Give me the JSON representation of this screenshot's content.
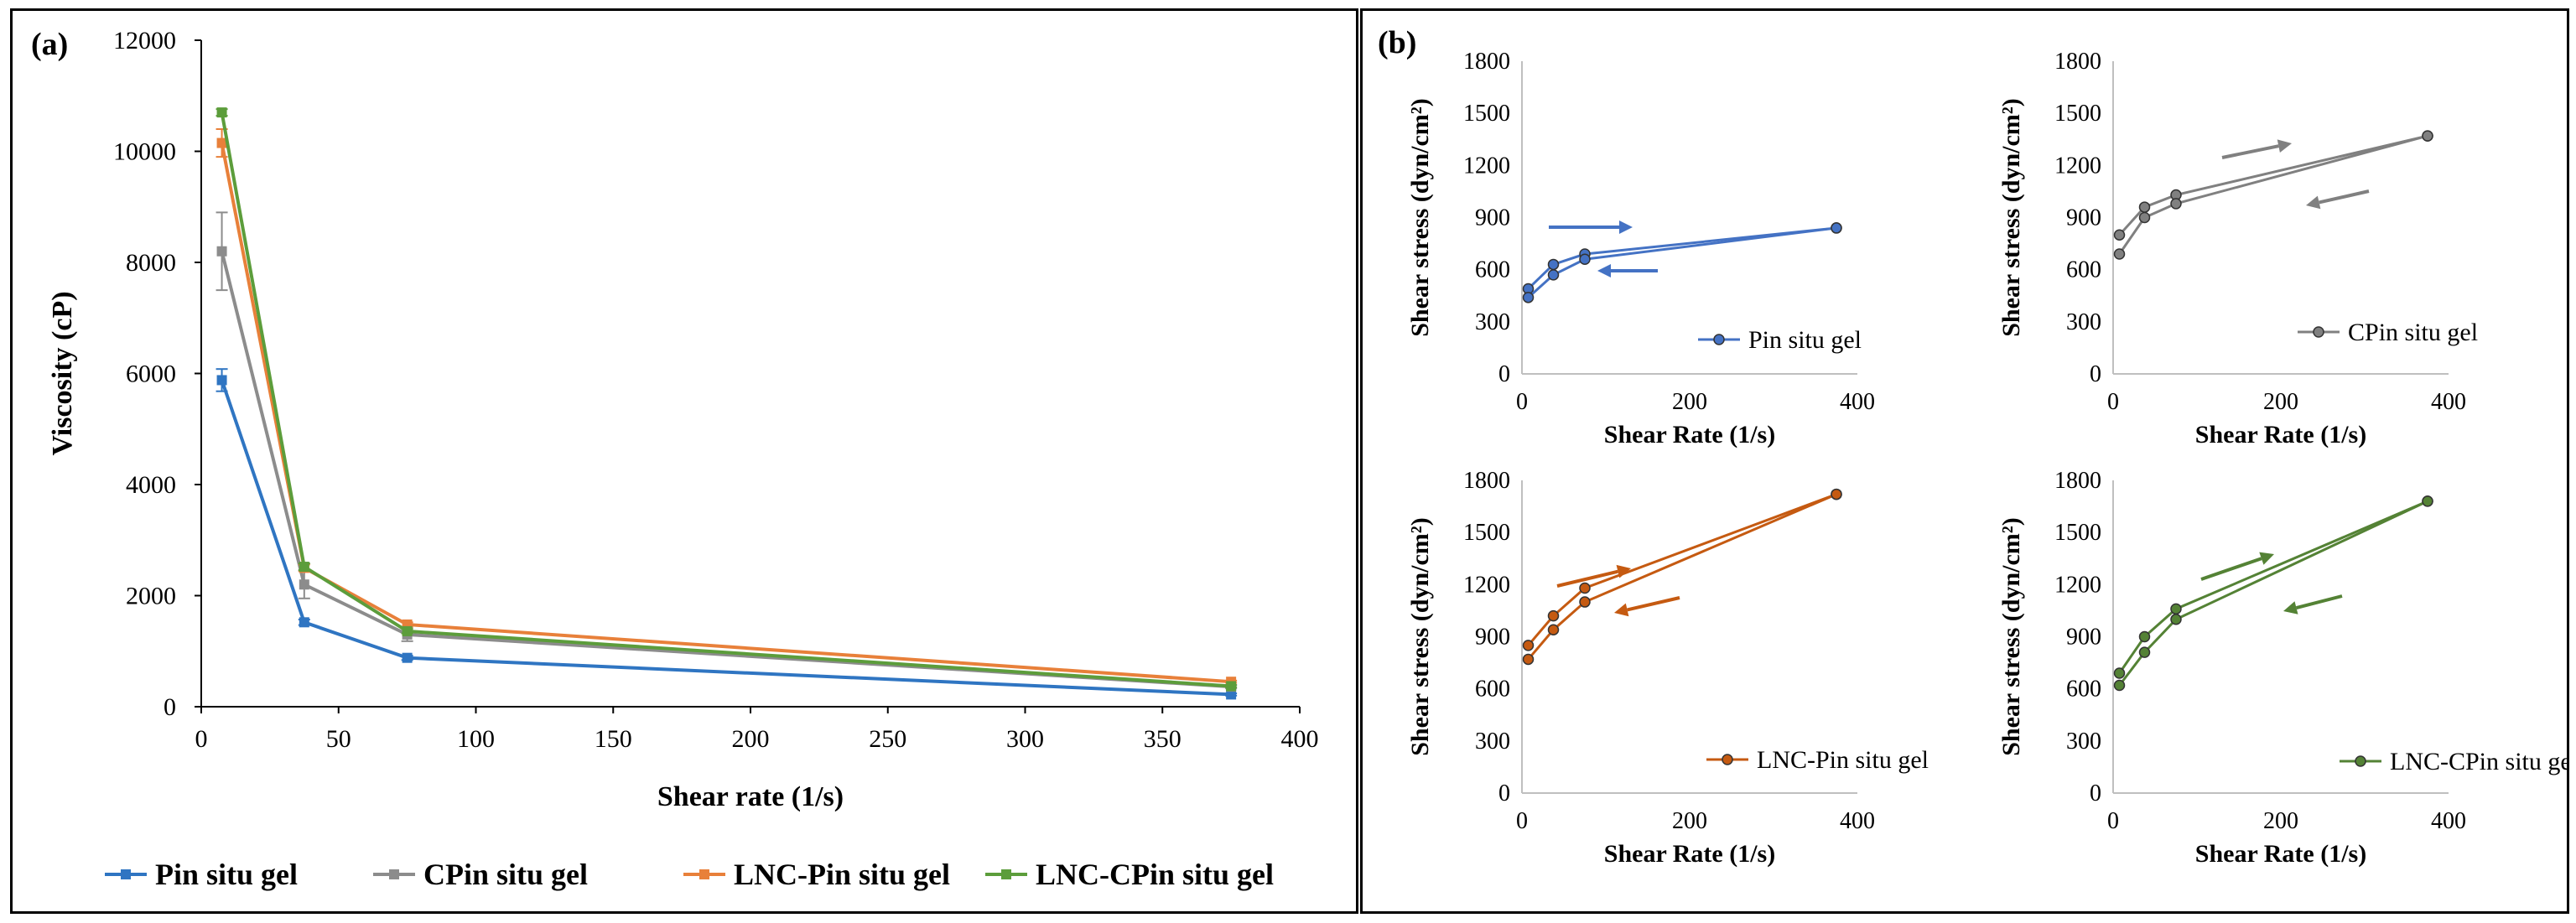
{
  "panel_a": {
    "label": "(a)",
    "legend": [
      "Pin situ gel",
      "CPin situ gel",
      "LNC-Pin situ gel",
      "LNC-CPin situ gel"
    ]
  },
  "panel_b": {
    "label": "(b)"
  },
  "colors": {
    "Pin situ gel": "#2f75c2",
    "CPin situ gel": "#8c8c8c",
    "LNC-Pin situ gel": "#e8803a",
    "LNC-CPin situ gel": "#5c9d3b",
    "sub_Pin": "#4472c4",
    "sub_CPin": "#808080",
    "sub_LNCP": "#c55a11",
    "sub_LNCCP": "#548235"
  },
  "chart_data": [
    {
      "id": "a",
      "type": "line",
      "xlabel": "Shear rate (1/s)",
      "ylabel": "Viscosity (cP)",
      "xlim": [
        0,
        400
      ],
      "ylim": [
        0,
        12000
      ],
      "xticks": [
        0,
        50,
        100,
        150,
        200,
        250,
        300,
        350,
        400
      ],
      "yticks": [
        0,
        2000,
        4000,
        6000,
        8000,
        10000,
        12000
      ],
      "x": [
        7.5,
        37.5,
        75,
        375
      ],
      "series": [
        {
          "name": "Pin situ gel",
          "values": [
            5880,
            1520,
            880,
            220
          ],
          "errors": [
            200,
            50,
            40,
            20
          ]
        },
        {
          "name": "CPin situ gel",
          "values": [
            8200,
            2200,
            1300,
            360
          ],
          "errors": [
            700,
            250,
            120,
            30
          ]
        },
        {
          "name": "LNC-Pin situ gel",
          "values": [
            10150,
            2500,
            1480,
            450
          ],
          "errors": [
            250,
            60,
            40,
            20
          ]
        },
        {
          "name": "LNC-CPin situ gel",
          "values": [
            10700,
            2520,
            1360,
            370
          ],
          "errors": [
            60,
            60,
            40,
            20
          ]
        }
      ]
    },
    {
      "id": "b1",
      "type": "line",
      "xlabel": "Shear Rate (1/s)",
      "ylabel": "Shear stress (dyn/cm²)",
      "xlim": [
        0,
        400
      ],
      "ylim": [
        0,
        1800
      ],
      "xticks": [
        0,
        200,
        400
      ],
      "yticks": [
        0,
        300,
        600,
        900,
        1200,
        1500,
        1800
      ],
      "legend": "Pin situ gel",
      "up": {
        "x": [
          7.5,
          37.5,
          75,
          375
        ],
        "y": [
          490,
          630,
          690,
          840
        ]
      },
      "down": {
        "x": [
          7.5,
          37.5,
          75,
          375
        ],
        "y": [
          440,
          570,
          660,
          840
        ]
      }
    },
    {
      "id": "b2",
      "type": "line",
      "xlabel": "Shear Rate (1/s)",
      "ylabel": "Shear stress (dyn/cm²)",
      "xlim": [
        0,
        400
      ],
      "ylim": [
        0,
        1800
      ],
      "xticks": [
        0,
        200,
        400
      ],
      "yticks": [
        0,
        300,
        600,
        900,
        1200,
        1500,
        1800
      ],
      "legend": "CPin situ gel",
      "up": {
        "x": [
          7.5,
          37.5,
          75,
          375
        ],
        "y": [
          800,
          960,
          1030,
          1370
        ]
      },
      "down": {
        "x": [
          7.5,
          37.5,
          75,
          375
        ],
        "y": [
          690,
          900,
          980,
          1370
        ]
      }
    },
    {
      "id": "b3",
      "type": "line",
      "xlabel": "Shear Rate (1/s)",
      "ylabel": "Shear stress (dyn/cm²)",
      "xlim": [
        0,
        400
      ],
      "ylim": [
        0,
        1800
      ],
      "xticks": [
        0,
        200,
        400
      ],
      "yticks": [
        0,
        300,
        600,
        900,
        1200,
        1500,
        1800
      ],
      "legend": "LNC-Pin situ gel",
      "up": {
        "x": [
          7.5,
          37.5,
          75,
          375
        ],
        "y": [
          850,
          1020,
          1180,
          1720
        ]
      },
      "down": {
        "x": [
          7.5,
          37.5,
          75,
          375
        ],
        "y": [
          770,
          940,
          1100,
          1720
        ]
      }
    },
    {
      "id": "b4",
      "type": "line",
      "xlabel": "Shear Rate (1/s)",
      "ylabel": "Shear stress (dyn/cm²)",
      "xlim": [
        0,
        400
      ],
      "ylim": [
        0,
        1800
      ],
      "xticks": [
        0,
        200,
        400
      ],
      "yticks": [
        0,
        300,
        600,
        900,
        1200,
        1500,
        1800
      ],
      "legend": "LNC-CPin situ gel",
      "up": {
        "x": [
          7.5,
          37.5,
          75,
          375
        ],
        "y": [
          690,
          900,
          1060,
          1680
        ]
      },
      "down": {
        "x": [
          7.5,
          37.5,
          75,
          375
        ],
        "y": [
          620,
          810,
          1000,
          1680
        ]
      }
    }
  ]
}
